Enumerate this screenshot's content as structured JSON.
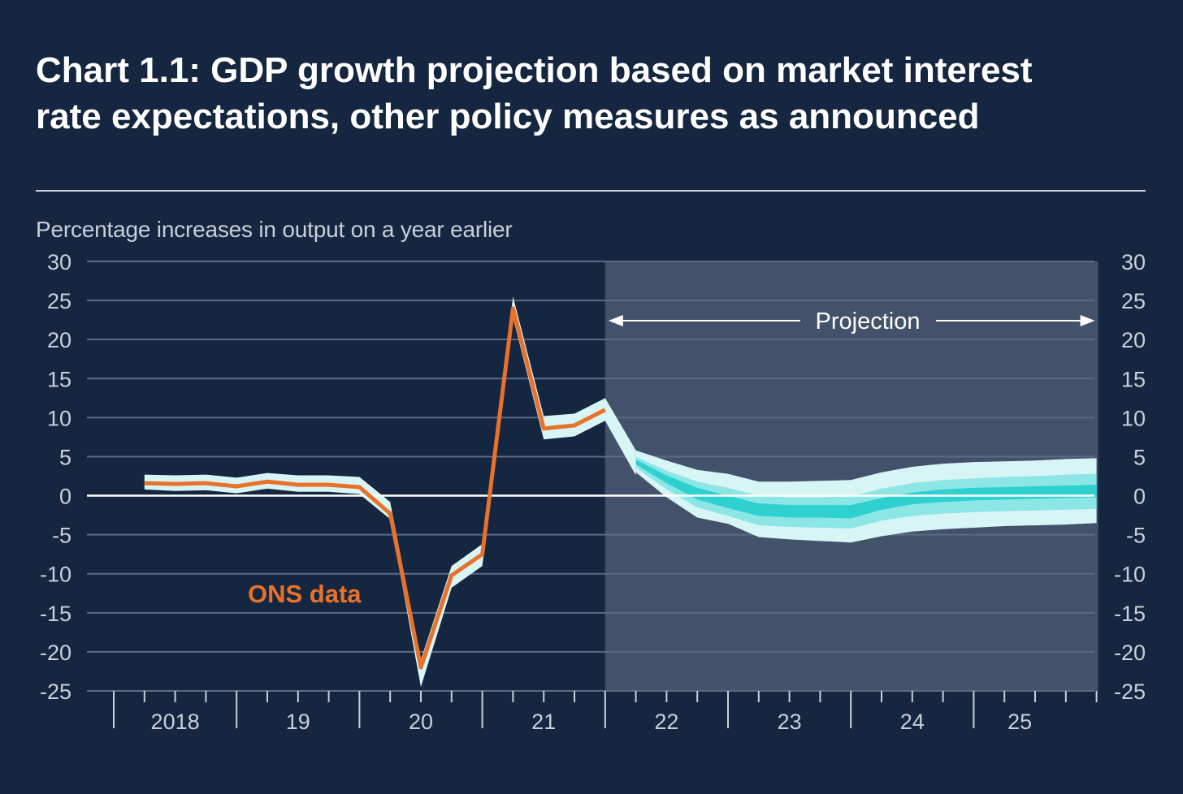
{
  "title_lines": [
    "Chart 1.1: GDP growth projection based on market interest",
    "rate expectations, other policy measures as announced"
  ],
  "colors": {
    "background": "#152640",
    "ons_line": "#e8722a",
    "fan_outer": "#d7f5f5",
    "fan_mid": "#8de6e6",
    "fan_inner": "#2fd0d0",
    "projection_shade": "#44516a",
    "grid": "#5b6a85"
  },
  "chart_data": {
    "type": "line",
    "ylabel": "Percentage increases in output on a year earlier",
    "ylim": [
      -25,
      30
    ],
    "y_ticks": [
      30,
      25,
      20,
      15,
      10,
      5,
      0,
      -5,
      -10,
      -15,
      -20,
      -25
    ],
    "y_tick_labels": [
      "30",
      "25",
      "20",
      "15",
      "10",
      "5",
      "0",
      "-5",
      "-10",
      "-15",
      "-20",
      "-25"
    ],
    "x_range": [
      "2017 Q4",
      "2025 Q4"
    ],
    "x_ticks": [
      "2018",
      "19",
      "20",
      "21",
      "22",
      "23",
      "24",
      "25"
    ],
    "grid": true,
    "axes_labels_both_sides": true,
    "projection": {
      "label": "Projection",
      "start": "2022 Q1",
      "end": "2025 Q4"
    },
    "annotations": [
      {
        "text": "ONS data"
      }
    ],
    "series": [
      {
        "name": "ONS data",
        "x": [
          "2018 Q1",
          "2018 Q2",
          "2018 Q3",
          "2018 Q4",
          "2019 Q1",
          "2019 Q2",
          "2019 Q3",
          "2019 Q4",
          "2020 Q1",
          "2020 Q2",
          "2020 Q3",
          "2020 Q4",
          "2021 Q1",
          "2021 Q2",
          "2021 Q3",
          "2021 Q4"
        ],
        "values": [
          1.6,
          1.5,
          1.6,
          1.2,
          1.8,
          1.4,
          1.4,
          1.1,
          -2.3,
          -22.0,
          -10.2,
          -7.5,
          24.0,
          8.6,
          9.0,
          11.0
        ]
      }
    ],
    "backcast_band": {
      "x": [
        "2018 Q1",
        "2018 Q2",
        "2018 Q3",
        "2018 Q4",
        "2019 Q1",
        "2019 Q2",
        "2019 Q3",
        "2019 Q4",
        "2020 Q1",
        "2020 Q2",
        "2020 Q3",
        "2020 Q4",
        "2021 Q1",
        "2021 Q2",
        "2021 Q3",
        "2021 Q4",
        "2022 Q1"
      ],
      "upper": [
        2.7,
        2.6,
        2.7,
        2.3,
        2.9,
        2.6,
        2.6,
        2.4,
        -0.8,
        -21.0,
        -9.0,
        -6.2,
        25.5,
        10.2,
        10.5,
        12.5,
        5.8
      ],
      "lower": [
        0.8,
        0.6,
        0.7,
        0.3,
        0.9,
        0.5,
        0.5,
        0.2,
        -3.0,
        -24.5,
        -11.8,
        -9.0,
        22.8,
        7.2,
        7.6,
        9.6,
        2.6
      ]
    },
    "fan_chart": {
      "x": [
        "2022 Q1",
        "2022 Q2",
        "2022 Q3",
        "2022 Q4",
        "2023 Q1",
        "2023 Q2",
        "2023 Q3",
        "2023 Q4",
        "2024 Q1",
        "2024 Q2",
        "2024 Q3",
        "2024 Q4",
        "2025 Q1",
        "2025 Q2",
        "2025 Q3",
        "2025 Q4"
      ],
      "outer_upper": [
        5.8,
        4.5,
        3.3,
        2.8,
        1.8,
        1.8,
        1.9,
        2.0,
        3.0,
        3.7,
        4.1,
        4.3,
        4.4,
        4.5,
        4.7,
        4.8
      ],
      "mid_upper": [
        5.0,
        3.2,
        1.8,
        1.0,
        0.0,
        -0.2,
        -0.2,
        -0.1,
        0.9,
        1.6,
        2.0,
        2.2,
        2.4,
        2.5,
        2.7,
        2.8
      ],
      "inner_upper": [
        4.6,
        2.6,
        1.0,
        0.0,
        -1.0,
        -1.2,
        -1.2,
        -1.2,
        -0.3,
        0.4,
        0.8,
        1.0,
        1.1,
        1.2,
        1.3,
        1.4
      ],
      "inner_lower": [
        4.0,
        1.6,
        -0.5,
        -1.6,
        -2.6,
        -2.8,
        -2.8,
        -2.9,
        -1.8,
        -1.1,
        -0.8,
        -0.6,
        -0.5,
        -0.4,
        -0.3,
        -0.2
      ],
      "mid_lower": [
        3.6,
        0.8,
        -1.5,
        -2.6,
        -3.8,
        -4.0,
        -4.1,
        -4.2,
        -3.2,
        -2.6,
        -2.3,
        -2.1,
        -2.0,
        -1.9,
        -1.8,
        -1.7
      ],
      "outer_lower": [
        3.0,
        -0.2,
        -2.8,
        -3.6,
        -5.3,
        -5.6,
        -5.8,
        -6.0,
        -5.2,
        -4.6,
        -4.3,
        -4.1,
        -3.9,
        -3.8,
        -3.7,
        -3.5
      ]
    }
  }
}
